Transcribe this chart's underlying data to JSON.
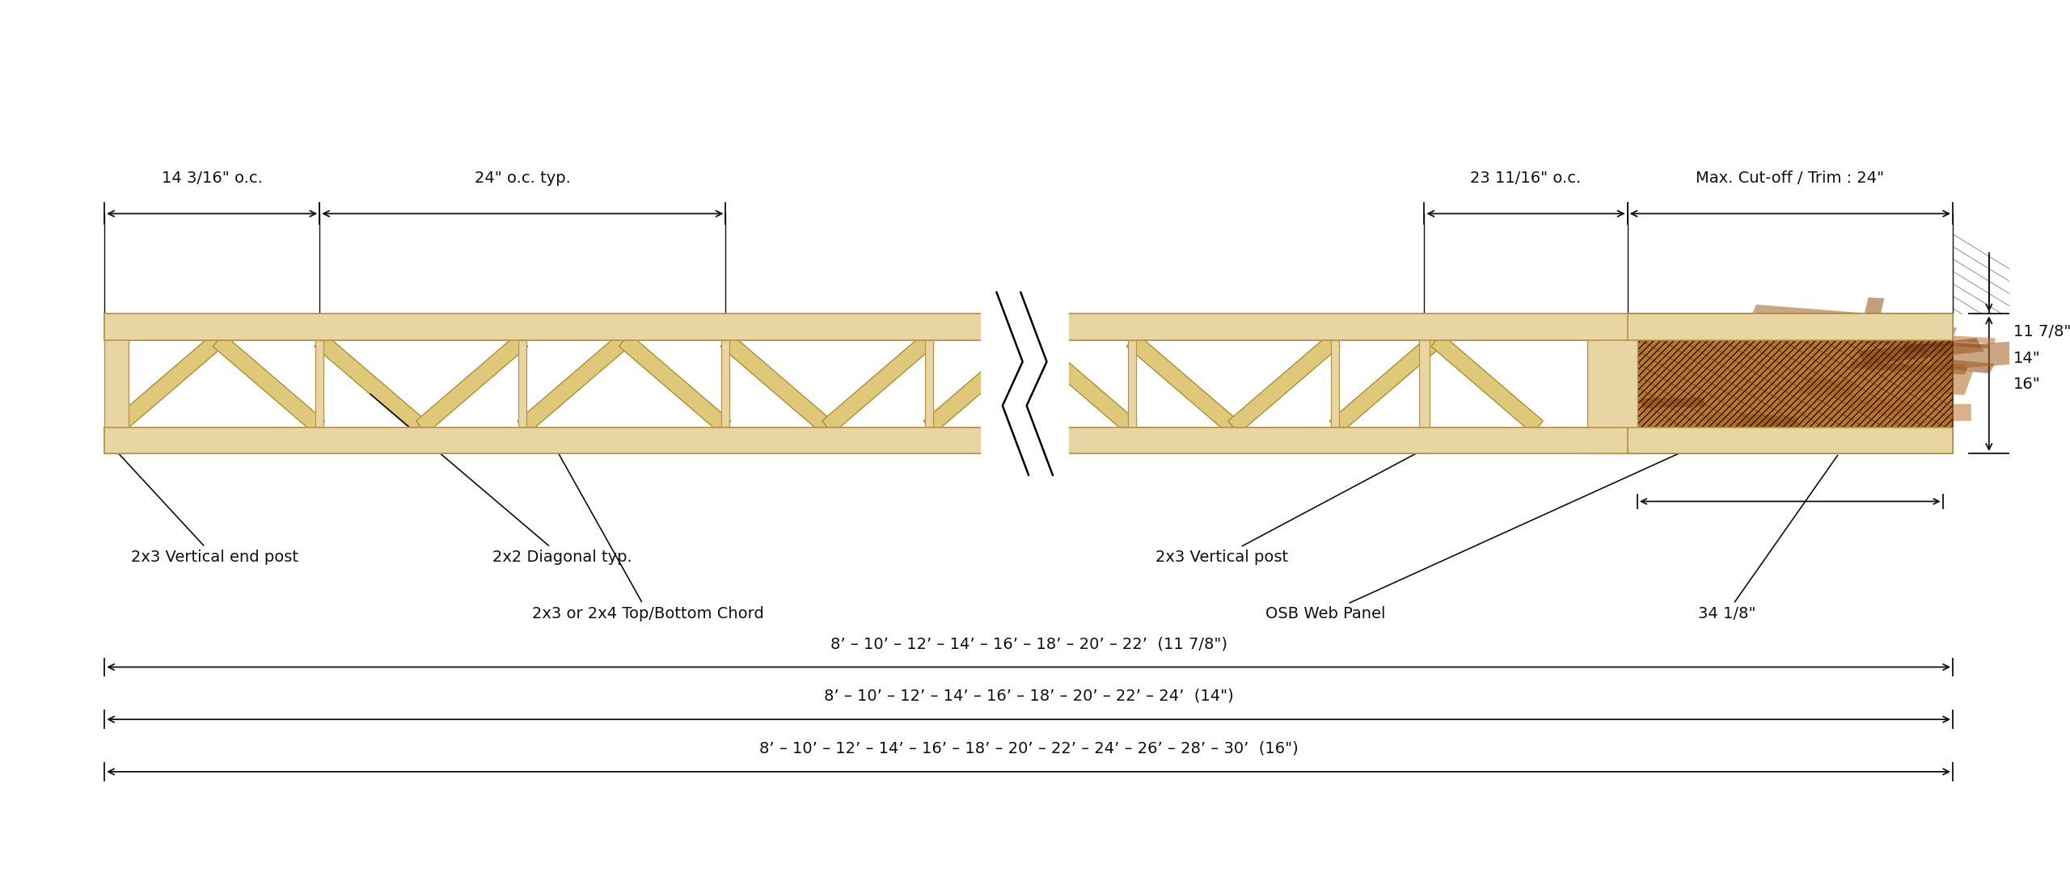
{
  "bg_color": "#ffffff",
  "wood_color": "#e8d5a3",
  "wood_edge": "#b8954a",
  "wood_dark": "#c8a855",
  "diag_color": "#dfc87a",
  "diag_edge": "#a8882a",
  "osb_base": "#b87830",
  "osb_dark1": "#8b5010",
  "osb_dark2": "#a06020",
  "osb_dark3": "#7a4010",
  "text_color": "#111111",
  "fig_width": 25.6,
  "fig_height": 10.79,
  "font_size": 14,
  "span_lines": [
    "8’ – 10’ – 12’ – 14’ – 16’ – 18’ – 20’ – 22’  (11 7/8\")",
    "8’ – 10’ – 12’ – 14’ – 16’ – 18’ – 20’ – 22’ – 24’  (14\")",
    "8’ – 10’ – 12’ – 14’ – 16’ – 18’ – 20’ – 22’ – 24’ – 26’ – 28’ – 30’  (16\")"
  ],
  "depths": [
    "11 7/8\"",
    "14\"",
    "16\""
  ],
  "labels": {
    "end_post": "2x3 Vertical end post",
    "diagonal": "2x2 Diagonal typ.",
    "chord": "2x3 or 2x4 Top/Bottom Chord",
    "vert_post": "2x3 Vertical post",
    "osb": "OSB Web Panel",
    "osb_width": "34 1/8\"",
    "oc_left": "14 3/16\" o.c.",
    "oc_mid": "24\" o.c. typ.",
    "oc_right": "23 11/16\" o.c.",
    "cutoff": "Max. Cut-off / Trim : 24\""
  }
}
